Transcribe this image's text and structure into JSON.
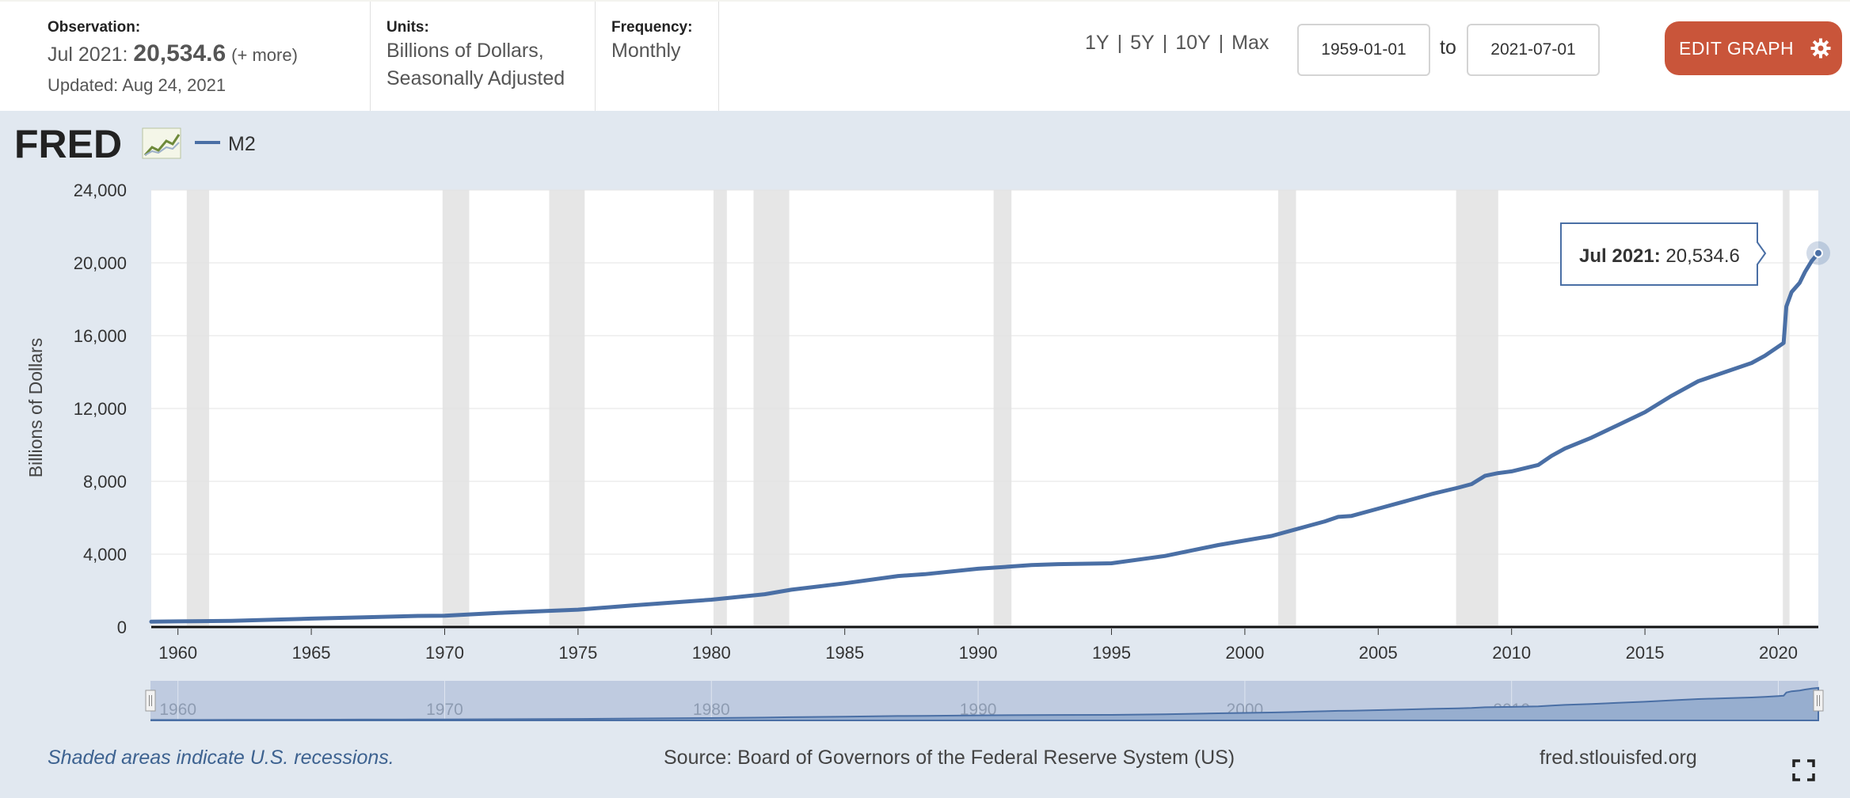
{
  "header": {
    "observation_label": "Observation:",
    "observation_date": "Jul 2021:",
    "observation_value": "20,534.6",
    "observation_more": "(+ more)",
    "updated": "Updated: Aug 24, 2021",
    "units_label": "Units:",
    "units_line1": "Billions of Dollars,",
    "units_line2": "Seasonally Adjusted",
    "frequency_label": "Frequency:",
    "frequency_value": "Monthly",
    "range_buttons": [
      "1Y",
      "5Y",
      "10Y",
      "Max"
    ],
    "range_sep": "|",
    "date_from": "1959-01-01",
    "to_label": "to",
    "date_to": "2021-07-01",
    "edit_label": "EDIT GRAPH"
  },
  "footer": {
    "recession_note": "Shaded areas indicate U.S. recessions.",
    "source": "Source: Board of Governors of the Federal Reserve System (US)",
    "site": "fred.stlouisfed.org"
  },
  "colors": {
    "line": "#4a6fa5",
    "edit_button": "#c9553a",
    "panel_bg": "#e1e8f0",
    "recession": "#e6e6e6"
  },
  "icons": [
    "fred-logo-icon",
    "settings-gear-icon",
    "fullscreen-icon"
  ],
  "chart_data": {
    "type": "line",
    "logo_text": "FRED",
    "ylabel": "Billions of Dollars",
    "xlabel": "",
    "ylim": [
      0,
      24000
    ],
    "xlim": [
      1959.0,
      2021.5
    ],
    "y_ticks": [
      "0",
      "4,000",
      "8,000",
      "12,000",
      "16,000",
      "20,000",
      "24,000"
    ],
    "x_ticks": [
      "1960",
      "1965",
      "1970",
      "1975",
      "1980",
      "1985",
      "1990",
      "1995",
      "2000",
      "2005",
      "2010",
      "2015",
      "2020"
    ],
    "navigator_ticks": [
      "1960",
      "1970",
      "1980",
      "1990",
      "2000",
      "2010",
      "2020"
    ],
    "grid": true,
    "legend_position": "top-left",
    "series": [
      {
        "name": "M2",
        "x": [
          1959.0,
          1960.0,
          1962.0,
          1965.0,
          1967.0,
          1969.0,
          1970.0,
          1972.0,
          1974.0,
          1975.0,
          1977.0,
          1980.0,
          1982.0,
          1983.0,
          1985.0,
          1987.0,
          1988.0,
          1990.0,
          1992.0,
          1993.0,
          1995.0,
          1997.0,
          1999.0,
          2001.0,
          2002.0,
          2003.0,
          2003.5,
          2004.0,
          2005.0,
          2006.0,
          2007.0,
          2008.0,
          2008.5,
          2009.0,
          2009.5,
          2010.0,
          2011.0,
          2011.5,
          2012.0,
          2013.0,
          2014.0,
          2015.0,
          2016.0,
          2017.0,
          2018.0,
          2019.0,
          2019.5,
          2020.0,
          2020.2,
          2020.3,
          2020.5,
          2020.8,
          2021.0,
          2021.25,
          2021.5
        ],
        "values": [
          290,
          310,
          340,
          460,
          530,
          610,
          620,
          770,
          890,
          950,
          1180,
          1500,
          1800,
          2050,
          2400,
          2800,
          2900,
          3200,
          3400,
          3450,
          3500,
          3900,
          4500,
          5000,
          5400,
          5800,
          6050,
          6100,
          6500,
          6900,
          7300,
          7650,
          7850,
          8300,
          8450,
          8550,
          8900,
          9400,
          9800,
          10400,
          11100,
          11800,
          12700,
          13500,
          14000,
          14500,
          14900,
          15400,
          15600,
          17600,
          18400,
          18900,
          19500,
          20100,
          20534.6
        ]
      }
    ],
    "recessions": [
      [
        1960.33,
        1961.17
      ],
      [
        1969.92,
        1970.92
      ],
      [
        1973.92,
        1975.25
      ],
      [
        1980.08,
        1980.58
      ],
      [
        1981.58,
        1982.92
      ],
      [
        1990.58,
        1991.25
      ],
      [
        2001.25,
        2001.92
      ],
      [
        2007.92,
        2009.5
      ],
      [
        2020.17,
        2020.42
      ]
    ],
    "tooltip": {
      "date": "Jul 2021:",
      "value": "20,534.6"
    }
  }
}
